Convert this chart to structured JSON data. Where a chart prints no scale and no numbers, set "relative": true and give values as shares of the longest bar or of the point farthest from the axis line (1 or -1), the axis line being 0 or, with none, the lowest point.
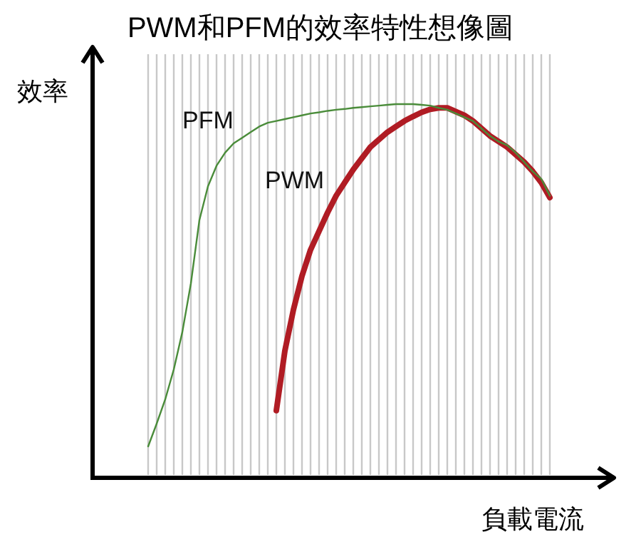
{
  "chart_data": {
    "type": "line",
    "title": "PWM和PFM的效率特性想像圖",
    "xlabel": "負載電流",
    "ylabel": "效率",
    "relative": true,
    "grid": "x",
    "categories": [
      null,
      null,
      null,
      null,
      null,
      null,
      null,
      null,
      null,
      null,
      null,
      null,
      null,
      null,
      null,
      null,
      null,
      null,
      null,
      null,
      null,
      null,
      null,
      null,
      null,
      null,
      null,
      null,
      null,
      null,
      null,
      null,
      null,
      null,
      null,
      null,
      null,
      null,
      null,
      null,
      null,
      null,
      null,
      null,
      null,
      null,
      null,
      null
    ],
    "series": [
      {
        "name": "PFM",
        "color": "#4a8c3a",
        "values": [
          0.084,
          0.145,
          0.21,
          0.29,
          0.39,
          0.52,
          0.69,
          0.78,
          0.835,
          0.87,
          0.895,
          0.91,
          0.925,
          0.94,
          0.95,
          0.955,
          0.96,
          0.965,
          0.97,
          0.975,
          0.978,
          0.982,
          0.985,
          0.987,
          0.99,
          0.992,
          0.994,
          0.996,
          0.998,
          1.0,
          1.0,
          1.0,
          0.998,
          0.996,
          0.99,
          0.985,
          0.975,
          0.965,
          0.955,
          0.935,
          0.915,
          0.9,
          0.89,
          0.87,
          0.845,
          0.82,
          0.8,
          0.755
        ]
      },
      {
        "name": "PWM",
        "color": "#b01c24",
        "values": [
          null,
          null,
          null,
          null,
          null,
          null,
          null,
          null,
          null,
          null,
          null,
          null,
          null,
          null,
          null,
          0.18,
          0.34,
          0.45,
          0.54,
          0.61,
          0.66,
          0.71,
          0.755,
          0.79,
          0.825,
          0.855,
          0.885,
          0.905,
          0.925,
          0.94,
          0.955,
          0.967,
          0.978,
          0.986,
          0.99,
          0.99,
          0.98,
          0.97,
          0.955,
          0.935,
          0.915,
          0.9,
          0.885,
          0.865,
          0.845,
          0.82,
          0.79,
          0.75
        ]
      }
    ]
  }
}
